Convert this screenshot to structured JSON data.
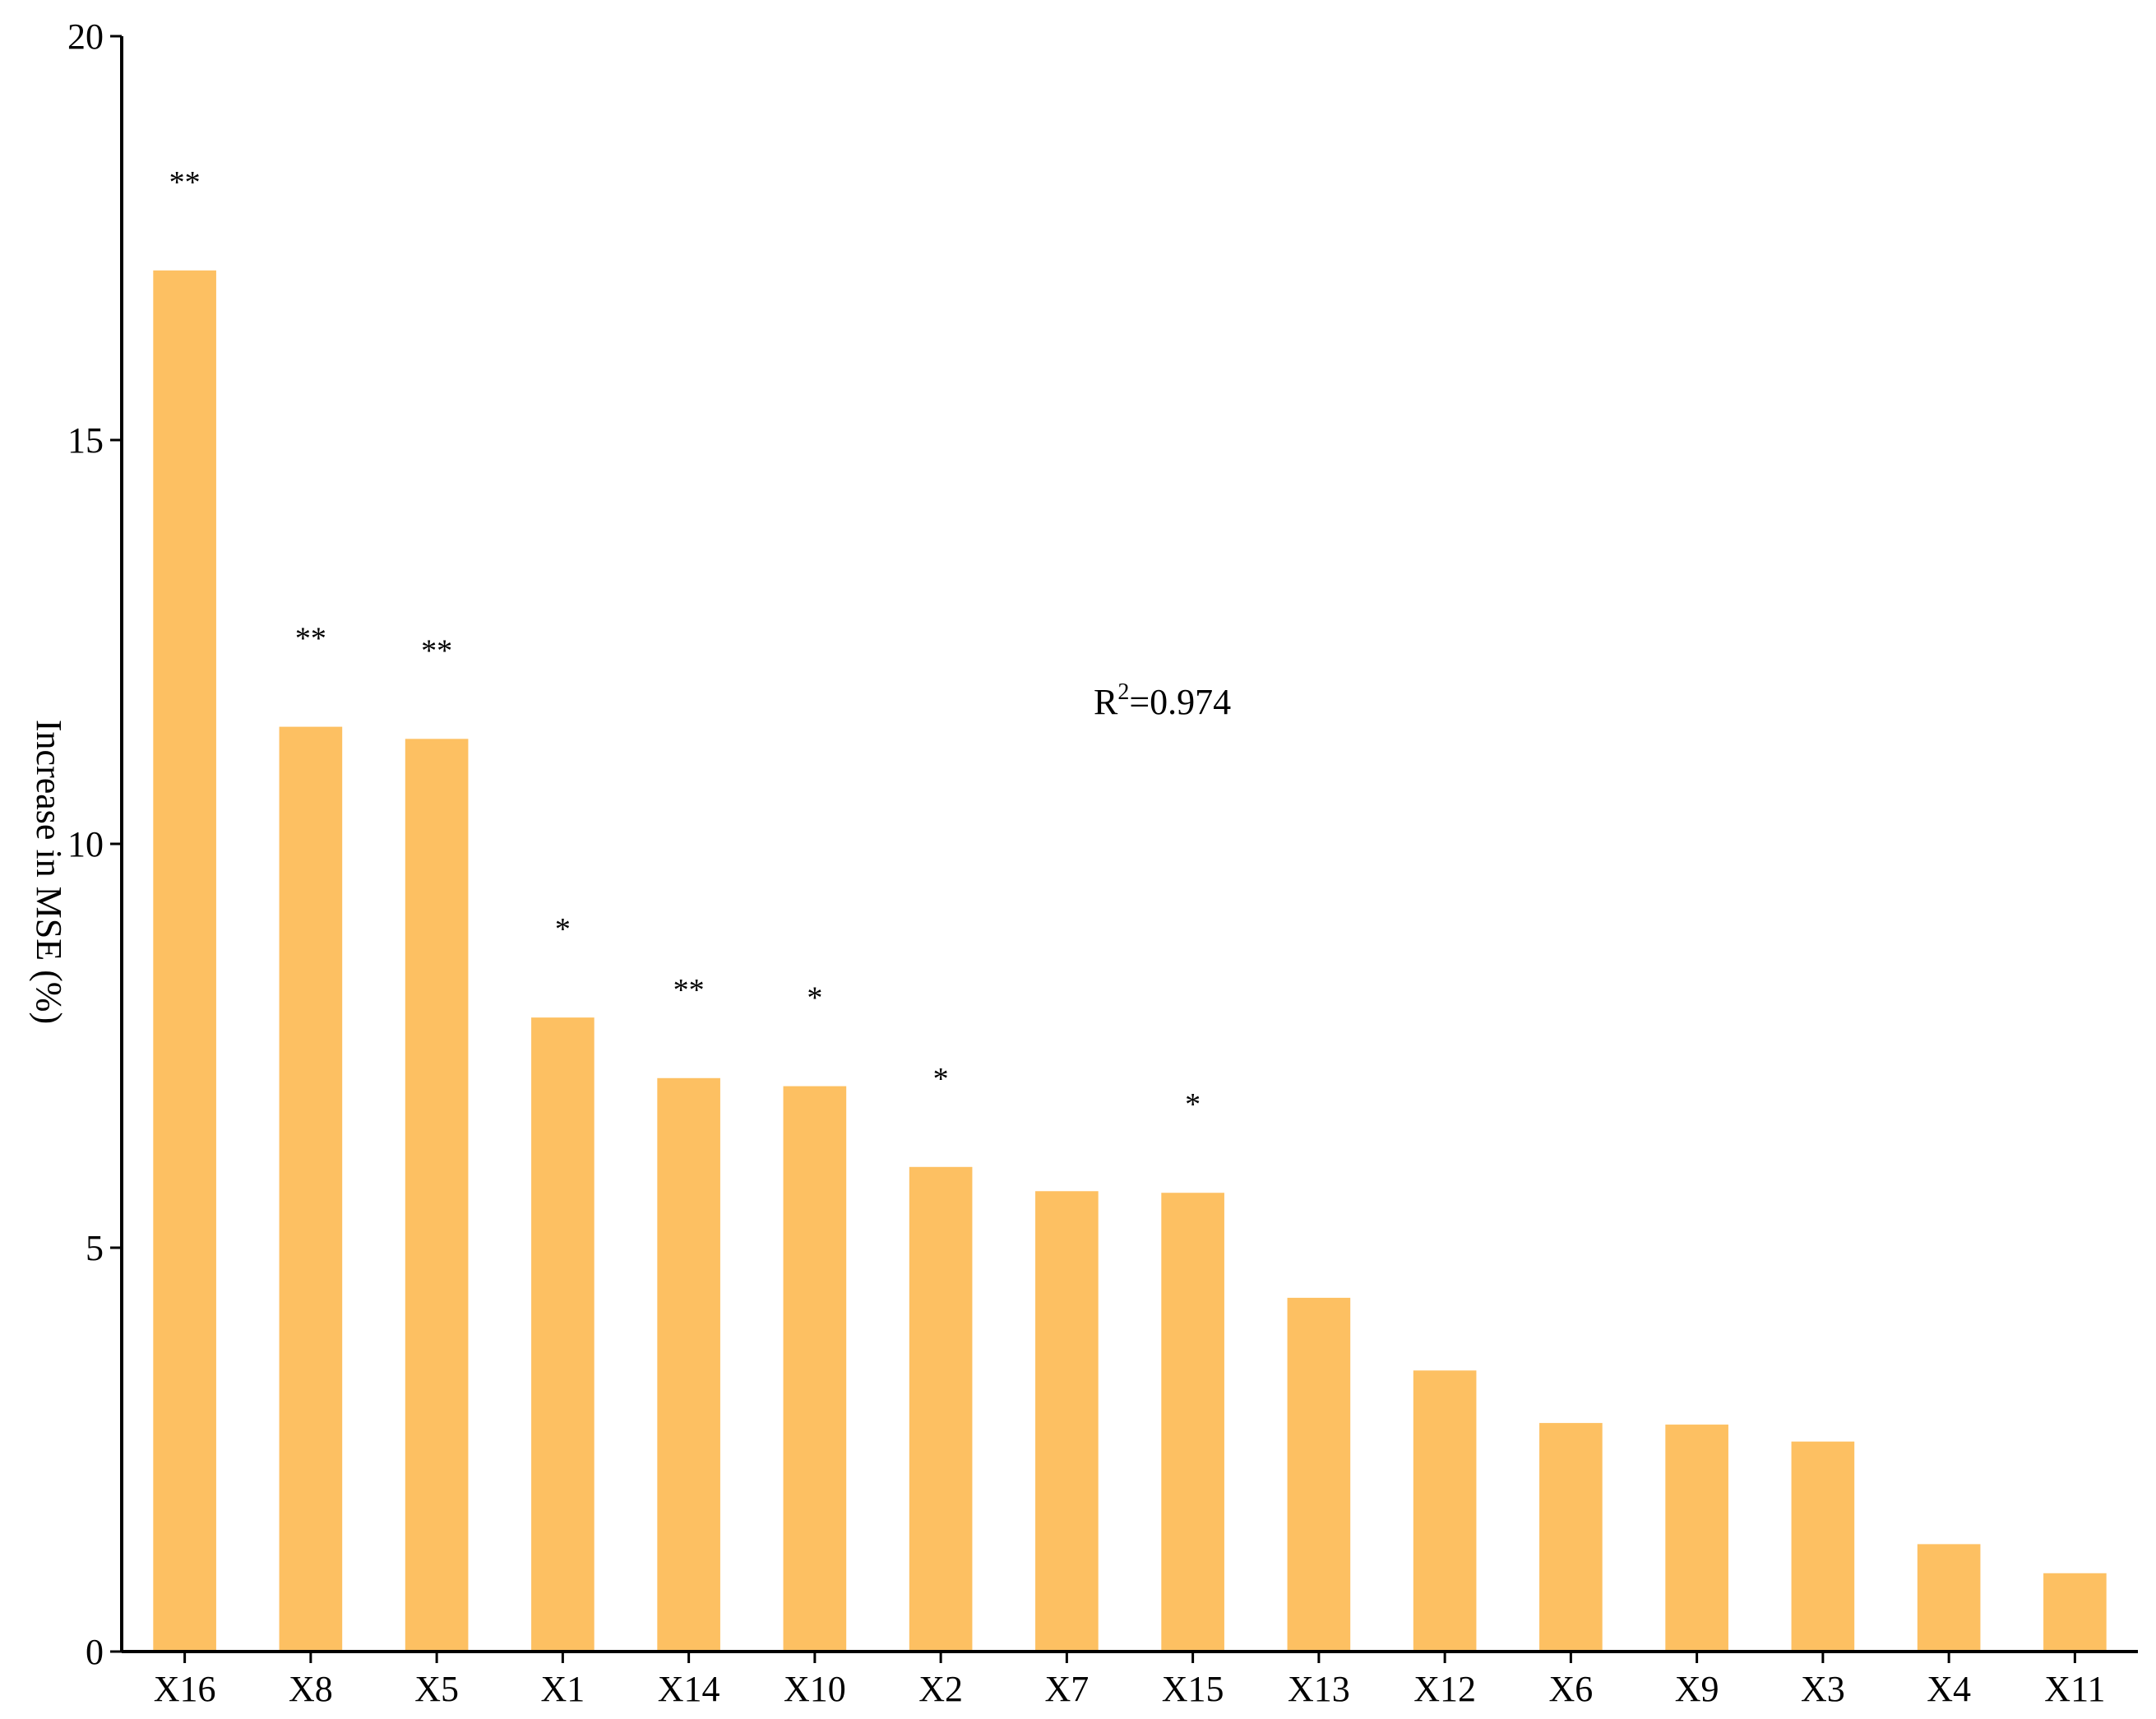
{
  "chart_data": {
    "type": "bar",
    "title": "",
    "xlabel": "",
    "ylabel": "Increase in MSE (%)",
    "ylim": [
      0,
      20
    ],
    "yticks": [
      0,
      5,
      10,
      15,
      20
    ],
    "grid": false,
    "bar_color": "#fdc062",
    "categories": [
      "X16",
      "X8",
      "X5",
      "X1",
      "X14",
      "X10",
      "X2",
      "X7",
      "X15",
      "X13",
      "X12",
      "X6",
      "X9",
      "X3",
      "X4",
      "X11"
    ],
    "values": [
      17.1,
      11.45,
      11.3,
      7.85,
      7.1,
      7.0,
      6.0,
      5.7,
      5.68,
      4.38,
      3.48,
      2.83,
      2.81,
      2.6,
      1.33,
      0.97
    ],
    "significance": [
      "**",
      "**",
      "**",
      "*",
      "**",
      "*",
      "*",
      "",
      "*",
      "",
      "",
      "",
      "",
      "",
      "",
      ""
    ],
    "annotation": {
      "prefix": "R",
      "sup": "2",
      "suffix": "=0.974"
    }
  }
}
